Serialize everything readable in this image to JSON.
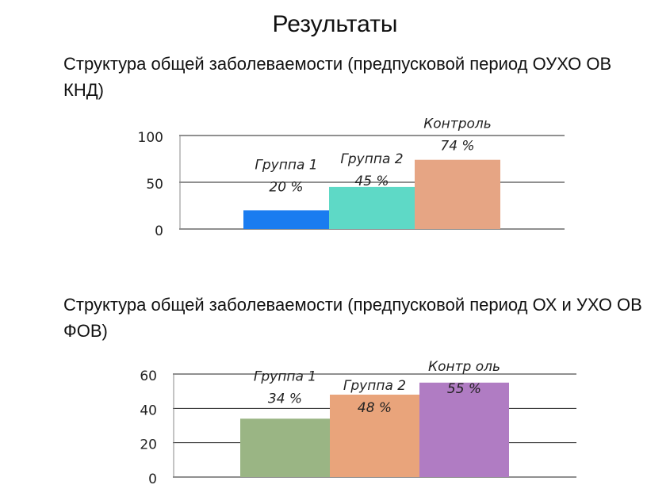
{
  "page_title": "Результаты",
  "chart_data": [
    {
      "type": "bar",
      "title": "Структура общей заболеваемости (предпусковой период ОУХО ОВ КНД)",
      "categories": [
        "Группа 1",
        "Группа 2",
        "Контроль"
      ],
      "values": [
        20,
        45,
        74
      ],
      "value_labels": [
        "20 %",
        "45 %",
        "74 %"
      ],
      "colors": [
        "#1a7cf0",
        "#5ed9c6",
        "#e6a584"
      ],
      "ylim": [
        0,
        100
      ],
      "yticks": [
        0,
        50,
        100
      ],
      "grid": true,
      "legend": "none"
    },
    {
      "type": "bar",
      "title": "Структура общей заболеваемости (предпусковой период ОХ и УХО ОВ ФОВ)",
      "categories": [
        "Группа 1",
        "Группа 2",
        "Контр оль"
      ],
      "values": [
        34,
        48,
        55
      ],
      "value_labels": [
        "34 %",
        "48 %",
        "55 %"
      ],
      "colors": [
        "#9ab584",
        "#e9a47b",
        "#b07cc3"
      ],
      "ylim": [
        0,
        60
      ],
      "yticks": [
        0,
        20,
        40,
        60
      ],
      "grid": true,
      "legend": "none"
    }
  ]
}
